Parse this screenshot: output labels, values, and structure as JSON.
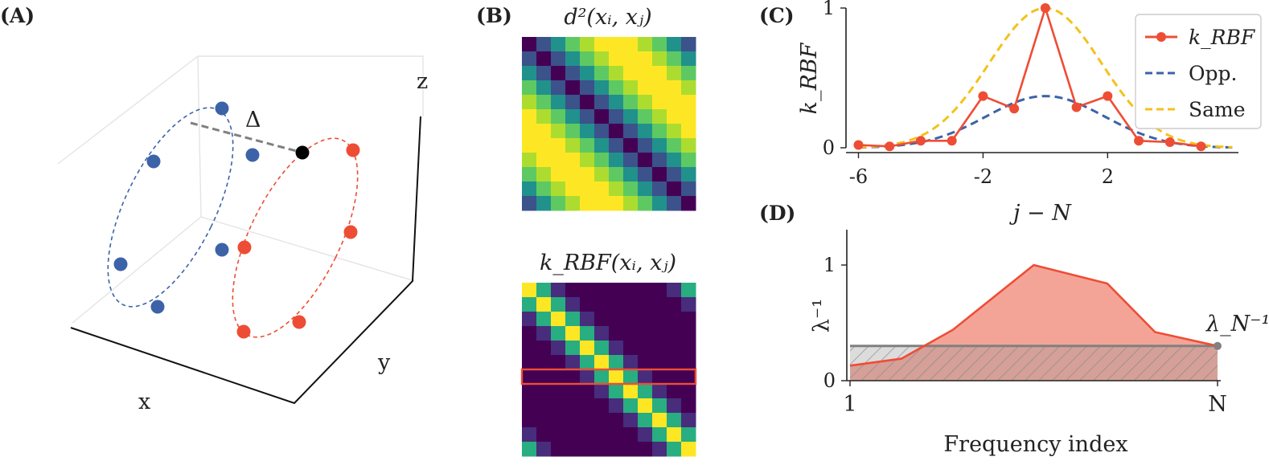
{
  "panels": {
    "A": {
      "label": "(A)",
      "axis_x": "x",
      "axis_y": "y",
      "axis_z": "z",
      "delta_label": "Δ",
      "colors": {
        "blue": "#3c63a8",
        "red": "#ee4d35",
        "black": "#000000",
        "gray": "#808080"
      }
    },
    "B": {
      "label": "(B)",
      "title_top": "d²(xᵢ, xⱼ)",
      "title_bottom": "k_RBF(xᵢ, xⱼ)",
      "highlight_color": "#ee4d35"
    },
    "C": {
      "label": "(C)"
    },
    "D": {
      "label": "(D)"
    }
  },
  "chart_data": [
    {
      "id": "B-top",
      "type": "heatmap",
      "title": "d²(xᵢ, xⱼ)",
      "size": 12,
      "pattern": "distance to diagonal, periodic; low on diagonal, high in between",
      "colormap": "viridis"
    },
    {
      "id": "B-bottom",
      "type": "heatmap",
      "title": "k_RBF(xᵢ, xⱼ)",
      "size": 12,
      "pattern": "bright diagonal band (kernel), highlighted middle row",
      "highlighted_row": 6,
      "colormap": "viridis"
    },
    {
      "id": "C",
      "type": "line",
      "xlabel": "j − N",
      "ylabel": "k_RBF",
      "xticks": [
        "-6",
        "-2",
        "2"
      ],
      "yticks": [
        "0",
        "1"
      ],
      "ylim": [
        0,
        1
      ],
      "xlim": [
        -6.4,
        6.2
      ],
      "legend_position": "top-right",
      "series": [
        {
          "name": "k_RBF",
          "style": "solid-markers",
          "color": "#ee4d35",
          "x": [
            -6,
            -5,
            -4,
            -3,
            -2,
            -1,
            0,
            1,
            2,
            3,
            4,
            5
          ],
          "y": [
            0.02,
            0.01,
            0.05,
            0.05,
            0.37,
            0.28,
            1.0,
            0.29,
            0.37,
            0.05,
            0.04,
            0.01
          ]
        },
        {
          "name": "Opp.",
          "style": "dashed",
          "color": "#3c63a8",
          "gaussian": {
            "amp": 0.37,
            "sigma": 1.9
          }
        },
        {
          "name": "Same",
          "style": "dashed",
          "color": "#f3c21b",
          "gaussian": {
            "amp": 1.0,
            "sigma": 1.8
          }
        }
      ]
    },
    {
      "id": "D",
      "type": "area",
      "xlabel": "Frequency index",
      "ylabel": "λ⁻¹",
      "xticks": [
        "1",
        "N"
      ],
      "yticks": [
        "0",
        "1"
      ],
      "ylim": [
        0,
        1
      ],
      "annotation": "λ_N⁻¹",
      "series": [
        {
          "name": "spectrum",
          "color": "#ee4d35",
          "fill": "#f4a497",
          "x": [
            0,
            0.14,
            0.28,
            0.5,
            0.7,
            0.83,
            1.0
          ],
          "y": [
            0.13,
            0.19,
            0.44,
            1.0,
            0.84,
            0.42,
            0.3
          ]
        },
        {
          "name": "floor",
          "color": "#808080",
          "value": 0.3,
          "hatched": true
        }
      ]
    }
  ],
  "legend": {
    "entries": [
      {
        "label": "k_RBF",
        "color": "#ee4d35"
      },
      {
        "label": "Opp.",
        "color": "#3c63a8"
      },
      {
        "label": "Same",
        "color": "#f3c21b"
      }
    ]
  }
}
